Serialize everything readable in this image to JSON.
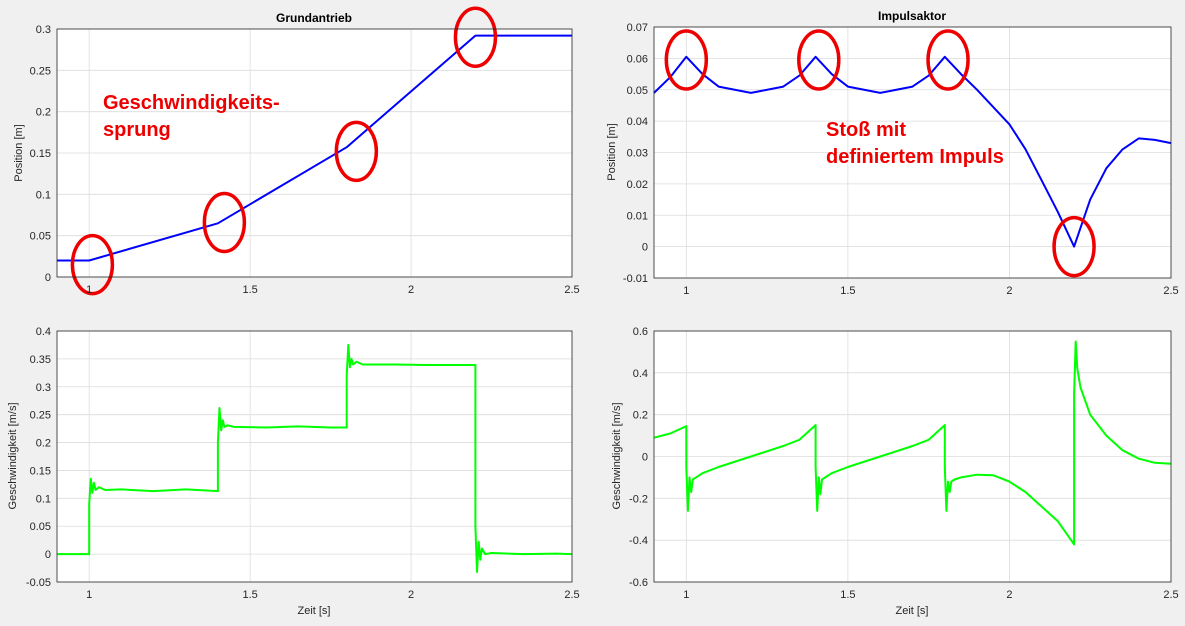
{
  "colors": {
    "position": "#0000ff",
    "velocity": "#00ff00",
    "marker": "#ee0000",
    "axes_bg": "#ffffff",
    "grid": "#dcdcdc",
    "figure_bg": "#f0f0f0"
  },
  "chart_data": [
    {
      "id": "grund_pos",
      "type": "line",
      "title": "Grundantrieb",
      "xlabel": "",
      "ylabel": "Position [m]",
      "xlim": [
        0.9,
        2.5
      ],
      "ylim": [
        0,
        0.3
      ],
      "grid": true,
      "xticks": [
        1,
        1.5,
        2,
        2.5
      ],
      "xtick_labels": [
        "1",
        "1.5",
        "2",
        "2.5"
      ],
      "yticks": [
        0,
        0.05,
        0.1,
        0.15,
        0.2,
        0.25,
        0.3
      ],
      "ytick_labels": [
        "0",
        "0.05",
        "0.1",
        "0.15",
        "0.2",
        "0.25",
        "0.3"
      ],
      "series": [
        {
          "x": [
            0.9,
            1.0,
            1.4,
            1.8,
            2.2,
            2.5
          ],
          "y": [
            0.02,
            0.02,
            0.065,
            0.157,
            0.292,
            0.292
          ]
        }
      ],
      "markers": [
        {
          "x": 1.01,
          "y": 0.015
        },
        {
          "x": 1.42,
          "y": 0.066
        },
        {
          "x": 1.83,
          "y": 0.152
        },
        {
          "x": 2.2,
          "y": 0.29
        }
      ],
      "annotation": [
        "Geschwindigkeits-",
        "sprung"
      ]
    },
    {
      "id": "impuls_pos",
      "type": "line",
      "title": "Impulsaktor",
      "xlabel": "",
      "ylabel": "Position [m]",
      "xlim": [
        0.9,
        2.5
      ],
      "ylim": [
        -0.01,
        0.07
      ],
      "grid": true,
      "xticks": [
        1,
        1.5,
        2,
        2.5
      ],
      "xtick_labels": [
        "1",
        "1.5",
        "2",
        "2.5"
      ],
      "yticks": [
        -0.01,
        0,
        0.01,
        0.02,
        0.03,
        0.04,
        0.05,
        0.06,
        0.07
      ],
      "ytick_labels": [
        "-0.01",
        "0",
        "0.01",
        "0.02",
        "0.03",
        "0.04",
        "0.05",
        "0.06",
        "0.07"
      ],
      "series": [
        {
          "x": [
            0.9,
            0.95,
            1.0,
            1.05,
            1.1,
            1.2,
            1.3,
            1.35,
            1.4,
            1.45,
            1.5,
            1.6,
            1.7,
            1.75,
            1.8,
            1.85,
            1.9,
            2.0,
            2.05,
            2.1,
            2.15,
            2.2,
            2.25,
            2.3,
            2.35,
            2.4,
            2.45,
            2.5
          ],
          "y": [
            0.049,
            0.054,
            0.0605,
            0.055,
            0.051,
            0.049,
            0.051,
            0.0545,
            0.0605,
            0.055,
            0.051,
            0.049,
            0.051,
            0.0545,
            0.0605,
            0.055,
            0.05,
            0.039,
            0.031,
            0.021,
            0.011,
            0.0,
            0.015,
            0.025,
            0.031,
            0.0345,
            0.034,
            0.033
          ]
        }
      ],
      "markers": [
        {
          "x": 1.0,
          "y": 0.0595
        },
        {
          "x": 1.41,
          "y": 0.0595
        },
        {
          "x": 1.81,
          "y": 0.0595
        },
        {
          "x": 2.2,
          "y": 0.0
        }
      ],
      "annotation": [
        "Stoß mit",
        "definiertem  Impuls"
      ]
    },
    {
      "id": "grund_vel",
      "type": "line",
      "title": "",
      "xlabel": "Zeit [s]",
      "ylabel": "Geschwindigkeit [m/s]",
      "xlim": [
        0.9,
        2.5
      ],
      "ylim": [
        -0.05,
        0.4
      ],
      "grid": true,
      "xticks": [
        1,
        1.5,
        2,
        2.5
      ],
      "xtick_labels": [
        "1",
        "1.5",
        "2",
        "2.5"
      ],
      "yticks": [
        -0.05,
        0,
        0.05,
        0.1,
        0.15,
        0.2,
        0.25,
        0.3,
        0.35,
        0.4
      ],
      "ytick_labels": [
        "-0.05",
        "0",
        "0.05",
        "0.1",
        "0.15",
        "0.2",
        "0.25",
        "0.3",
        "0.35",
        "0.4"
      ],
      "series": [
        {
          "x": [
            0.9,
            1.0,
            1.0,
            1.005,
            1.01,
            1.015,
            1.02,
            1.03,
            1.05,
            1.1,
            1.2,
            1.3,
            1.4,
            1.4,
            1.405,
            1.41,
            1.415,
            1.42,
            1.43,
            1.45,
            1.55,
            1.65,
            1.75,
            1.8,
            1.8,
            1.805,
            1.81,
            1.815,
            1.82,
            1.83,
            1.85,
            1.95,
            2.05,
            2.15,
            2.2,
            2.2,
            2.205,
            2.21,
            2.215,
            2.22,
            2.23,
            2.25,
            2.35,
            2.45,
            2.5
          ],
          "y": [
            0.0,
            0.0,
            0.09,
            0.135,
            0.11,
            0.128,
            0.115,
            0.12,
            0.115,
            0.116,
            0.113,
            0.116,
            0.113,
            0.2,
            0.262,
            0.222,
            0.24,
            0.228,
            0.231,
            0.228,
            0.227,
            0.229,
            0.227,
            0.227,
            0.32,
            0.375,
            0.335,
            0.35,
            0.34,
            0.345,
            0.34,
            0.34,
            0.339,
            0.339,
            0.339,
            0.05,
            -0.032,
            0.022,
            -0.01,
            0.01,
            0.0,
            0.002,
            0.0,
            0.001,
            0.0
          ]
        }
      ]
    },
    {
      "id": "impuls_vel",
      "type": "line",
      "title": "",
      "xlabel": "Zeit [s]",
      "ylabel": "Geschwindigkeit [m/s]",
      "xlim": [
        0.9,
        2.5
      ],
      "ylim": [
        -0.6,
        0.6
      ],
      "grid": true,
      "xticks": [
        1,
        1.5,
        2,
        2.5
      ],
      "xtick_labels": [
        "1",
        "1.5",
        "2",
        "2.5"
      ],
      "yticks": [
        -0.6,
        -0.4,
        -0.2,
        0,
        0.2,
        0.4,
        0.6
      ],
      "ytick_labels": [
        "-0.6",
        "-0.4",
        "-0.2",
        "0",
        "0.2",
        "0.4",
        "0.6"
      ],
      "series": [
        {
          "x": [
            0.9,
            0.95,
            1.0,
            1.0,
            1.005,
            1.01,
            1.015,
            1.02,
            1.03,
            1.05,
            1.1,
            1.2,
            1.3,
            1.35,
            1.4,
            1.4,
            1.405,
            1.41,
            1.415,
            1.42,
            1.43,
            1.45,
            1.5,
            1.6,
            1.7,
            1.75,
            1.8,
            1.8,
            1.805,
            1.81,
            1.815,
            1.82,
            1.83,
            1.85,
            1.9,
            1.95,
            2.0,
            2.05,
            2.1,
            2.15,
            2.2,
            2.2,
            2.205,
            2.21,
            2.22,
            2.25,
            2.3,
            2.35,
            2.4,
            2.45,
            2.5
          ],
          "y": [
            0.09,
            0.11,
            0.145,
            -0.05,
            -0.26,
            -0.1,
            -0.17,
            -0.11,
            -0.1,
            -0.08,
            -0.05,
            0.0,
            0.05,
            0.08,
            0.15,
            -0.05,
            -0.26,
            -0.1,
            -0.18,
            -0.11,
            -0.1,
            -0.08,
            -0.05,
            0.0,
            0.05,
            0.08,
            0.15,
            -0.05,
            -0.26,
            -0.12,
            -0.17,
            -0.12,
            -0.11,
            -0.1,
            -0.087,
            -0.09,
            -0.12,
            -0.17,
            -0.24,
            -0.31,
            -0.42,
            0.3,
            0.55,
            0.42,
            0.33,
            0.2,
            0.1,
            0.03,
            -0.01,
            -0.03,
            -0.035
          ]
        }
      ],
      "markers": []
    }
  ]
}
